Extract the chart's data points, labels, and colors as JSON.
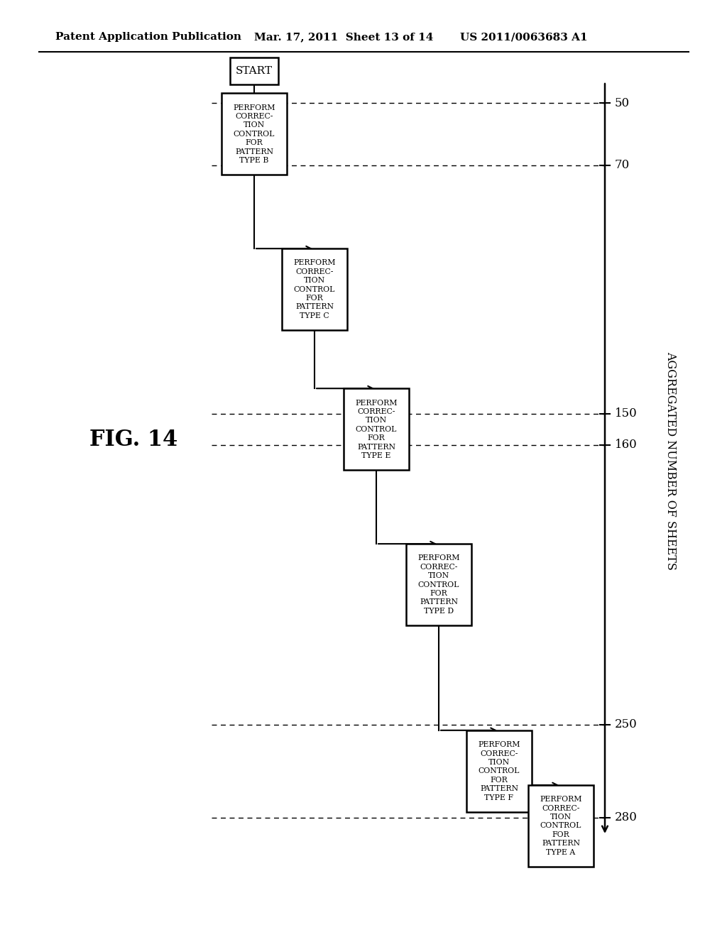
{
  "header_left": "Patent Application Publication",
  "header_center": "Mar. 17, 2011  Sheet 13 of 14",
  "header_right": "US 2011/0063683 A1",
  "fig_label": "FIG. 14",
  "y_axis_label": "AGGREGATED NUMBER OF SHEETS",
  "start_label": "START",
  "box_labels": [
    "PERFORM\nCORREC-\nTION\nCONTROL\nFOR\nPATTERN\nTYPE B",
    "PERFORM\nCORREC-\nTION\nCONTROL\nFOR\nPATTERN\nTYPE C",
    "PERFORM\nCORREC-\nTION\nCONTROL\nFOR\nPATTERN\nTYPE E",
    "PERFORM\nCORREC-\nTION\nCONTROL\nFOR\nPATTERN\nTYPE D",
    "PERFORM\nCORREC-\nTION\nCONTROL\nFOR\nPATTERN\nTYPE F",
    "PERFORM\nCORREC-\nTION\nCONTROL\nFOR\nPATTERN\nTYPE A"
  ],
  "tick_values": [
    50,
    70,
    150,
    160,
    250,
    280
  ],
  "background_color": "#ffffff",
  "text_color": "#000000"
}
